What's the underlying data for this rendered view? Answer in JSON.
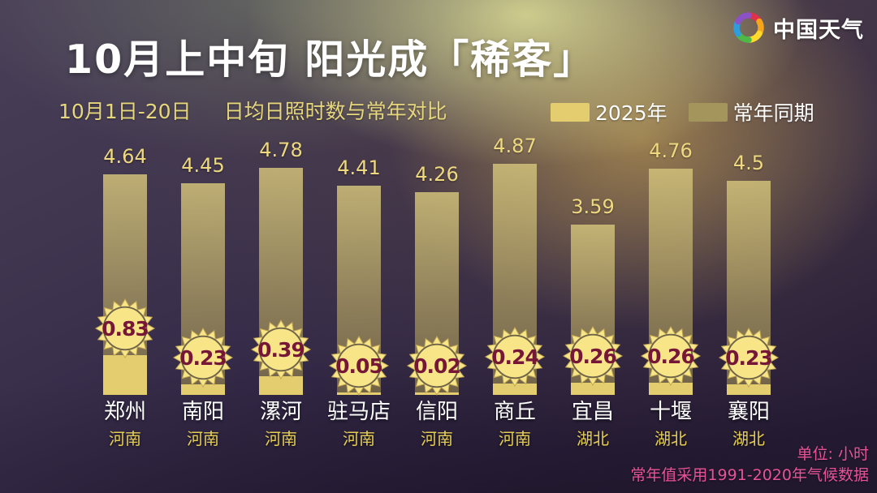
{
  "header": {
    "logo_text": "中国天气",
    "title": "10月上中旬 阳光成「稀客」"
  },
  "subtitle": {
    "date_range": "10月1日-20日",
    "description": "日均日照时数与常年对比"
  },
  "legend": {
    "items": [
      {
        "label": "2025年",
        "color": "#e3cd6f"
      },
      {
        "label": "常年同期",
        "color": "#a3955c"
      }
    ]
  },
  "footer": {
    "unit": "单位: 小时",
    "note": "常年值采用1991-2020年气候数据"
  },
  "colors": {
    "bar_2025": "#e3cd6f",
    "bar_normal": "#a3955c",
    "sun_fill": "#f7e588",
    "sun_ray_stroke": "#c2a753",
    "sun_ring": "#6f6448",
    "sun_text": "#761737",
    "value_label": "#eed981",
    "province_label": "#e5ce55",
    "footer_text": "#e75397"
  },
  "logo_petal_colors": [
    "#e0304a",
    "#f7a51b",
    "#ffd92b",
    "#4db848",
    "#2e9de0",
    "#8a52c4"
  ],
  "chart_data": {
    "type": "bar",
    "title": "10月上中旬 阳光成「稀客」",
    "subtitle": "10月1日-20日 日均日照时数与常年对比",
    "unit": "小时",
    "categories": [
      "郑州",
      "南阳",
      "漯河",
      "驻马店",
      "信阳",
      "商丘",
      "宜昌",
      "十堰",
      "襄阳"
    ],
    "provinces": [
      "河南",
      "河南",
      "河南",
      "河南",
      "河南",
      "河南",
      "湖北",
      "湖北",
      "湖北"
    ],
    "series": [
      {
        "name": "2025年",
        "values": [
          0.83,
          0.23,
          0.39,
          0.05,
          0.02,
          0.24,
          0.26,
          0.26,
          0.23
        ],
        "labels": [
          "0.83",
          "0.23",
          "0.39",
          "0.05",
          "0.02",
          "0.24",
          "0.26",
          "0.26",
          "0.23"
        ]
      },
      {
        "name": "常年同期",
        "values": [
          4.64,
          4.45,
          4.78,
          4.41,
          4.26,
          4.87,
          3.59,
          4.76,
          4.5
        ],
        "labels": [
          "4.64",
          "4.45",
          "4.78",
          "4.41",
          "4.26",
          "4.87",
          "3.59",
          "4.76",
          "4.5"
        ]
      }
    ],
    "ylim": [
      0,
      5
    ],
    "grid": false,
    "legend_position": "top-right",
    "value_labels_shown": true,
    "note": "常年值采用1991-2020年气候数据"
  }
}
